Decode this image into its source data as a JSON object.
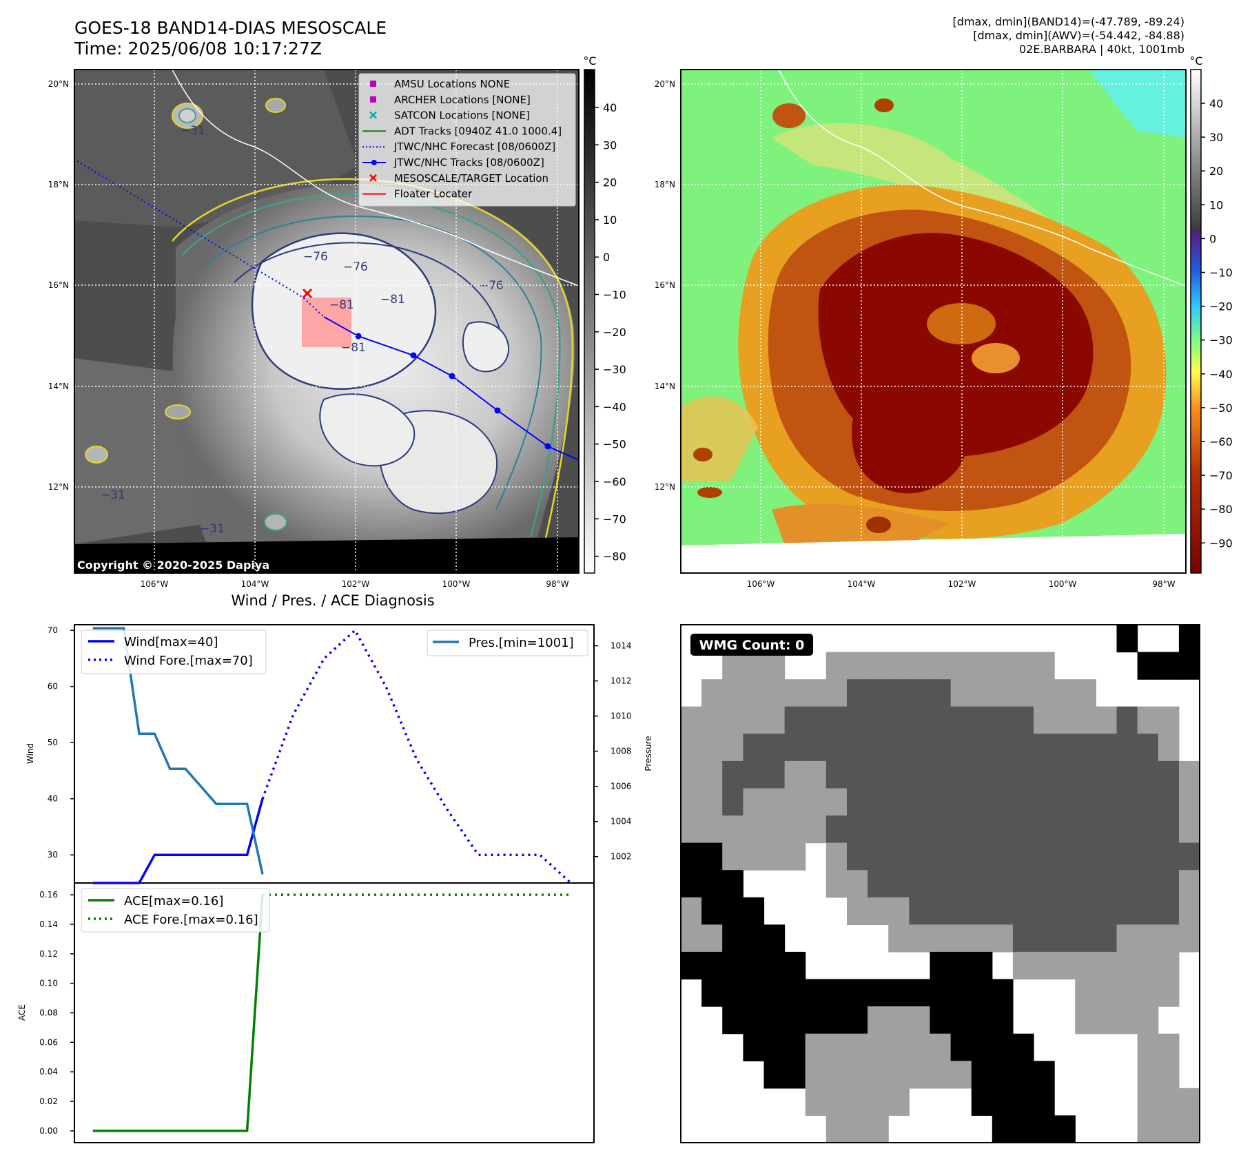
{
  "header": {
    "title_line1": "GOES-18 BAND14-DIAS MESOSCALE",
    "title_line2": "Time: 2025/06/08 10:17:27Z",
    "stats_line1": "[dmax, dmin](BAND14)=(-47.789, -89.24)",
    "stats_line2": "[dmax, dmin](AWV)=(-54.442, -84.88)",
    "stats_line3": "02E.BARBARA | 40kt, 1001mb"
  },
  "ir_panel": {
    "lat_labels": [
      "20°N",
      "18°N",
      "16°N",
      "14°N",
      "12°N"
    ],
    "lon_labels": [
      "106°W",
      "104°W",
      "102°W",
      "100°W",
      "98°W"
    ],
    "colorbar_unit": "°C",
    "colorbar_ticks": [
      "40",
      "30",
      "20",
      "10",
      "0",
      "−10",
      "−20",
      "−30",
      "−40",
      "−50",
      "−60",
      "−70",
      "−80"
    ],
    "copyright": "Copyright © 2020-2025 Dapiya",
    "contour_labels": [
      "−76",
      "−81",
      "−76",
      "−76",
      "−81",
      "−81",
      "−31",
      "−31",
      "−31"
    ],
    "legend": [
      {
        "label": "AMSU Locations NONE",
        "marker": "square",
        "color": "#c000c0"
      },
      {
        "label": "ARCHER Locations [NONE]",
        "marker": "square",
        "color": "#c000c0"
      },
      {
        "label": "SATCON Locations [NONE]",
        "marker": "x",
        "color": "#00b0b0"
      },
      {
        "label": "ADT Tracks [0940Z 41.0 1000.4]",
        "marker": "line",
        "color": "#008000"
      },
      {
        "label": "JTWC/NHC Forecast [08/0600Z]",
        "marker": "dotted",
        "color": "#0000ff"
      },
      {
        "label": "JTWC/NHC Tracks [08/0600Z]",
        "marker": "line-dot",
        "color": "#0000ff"
      },
      {
        "label": "MESOSCALE/TARGET Location",
        "marker": "x",
        "color": "#ff0000"
      },
      {
        "label": "Floater Locater",
        "marker": "line",
        "color": "#ff0000"
      }
    ]
  },
  "wv_panel": {
    "lat_labels": [
      "20°N",
      "18°N",
      "16°N",
      "14°N",
      "12°N"
    ],
    "lon_labels": [
      "106°W",
      "104°W",
      "102°W",
      "100°W",
      "98°W"
    ],
    "colorbar_unit": "°C",
    "colorbar_ticks": [
      "40",
      "30",
      "20",
      "10",
      "0",
      "−10",
      "−20",
      "−30",
      "−40",
      "−50",
      "−60",
      "−70",
      "−80",
      "−90"
    ]
  },
  "diag_title": "Wind / Pres. / ACE Diagnosis",
  "wmg_label": "WMG Count: 0",
  "chart_data": [
    {
      "type": "line",
      "panel": "wind-pressure",
      "ylabel": "Wind",
      "ylabel2": "Pressure",
      "ylim": [
        25,
        71
      ],
      "y2lim": [
        1000.5,
        1015.2
      ],
      "yticks": [
        30,
        40,
        50,
        60,
        70
      ],
      "y2ticks": [
        1002,
        1004,
        1006,
        1008,
        1010,
        1012,
        1014
      ],
      "series": [
        {
          "name": "Wind[max=40]",
          "color": "#0000ff",
          "style": "solid",
          "x": [
            0,
            1,
            2,
            3,
            4,
            5,
            6,
            7,
            8,
            9,
            10,
            11
          ],
          "y": [
            25,
            25,
            25,
            25,
            30,
            30,
            30,
            30,
            30,
            30,
            30,
            40
          ]
        },
        {
          "name": "Wind Fore.[max=70]",
          "color": "#0000ff",
          "style": "dotted",
          "x": [
            11,
            13,
            15,
            17,
            19,
            21,
            23,
            25,
            27,
            29,
            31
          ],
          "y": [
            40,
            55,
            65,
            70,
            60,
            47,
            38,
            30,
            30,
            30,
            25
          ]
        },
        {
          "name": "Pres.[min=1001]",
          "color": "#1f77b4",
          "style": "solid",
          "axis": "right",
          "x": [
            0,
            1,
            2,
            3,
            4,
            5,
            6,
            7,
            8,
            9,
            10,
            11
          ],
          "y": [
            1015,
            1015,
            1015,
            1009,
            1009,
            1007,
            1007,
            1006,
            1005,
            1005,
            1005,
            1001
          ]
        }
      ]
    },
    {
      "type": "line",
      "panel": "ace",
      "ylabel": "ACE",
      "ylim": [
        -0.008,
        0.168
      ],
      "yticks": [
        "0.00",
        "0.02",
        "0.04",
        "0.06",
        "0.08",
        "0.10",
        "0.12",
        "0.14",
        "0.16"
      ],
      "series": [
        {
          "name": "ACE[max=0.16]",
          "color": "#008000",
          "style": "solid",
          "x": [
            0,
            10,
            11
          ],
          "y": [
            0.0,
            0.0,
            0.16
          ]
        },
        {
          "name": "ACE Fore.[max=0.16]",
          "color": "#008000",
          "style": "dotted",
          "x": [
            11,
            31
          ],
          "y": [
            0.16,
            0.16
          ]
        }
      ]
    }
  ]
}
